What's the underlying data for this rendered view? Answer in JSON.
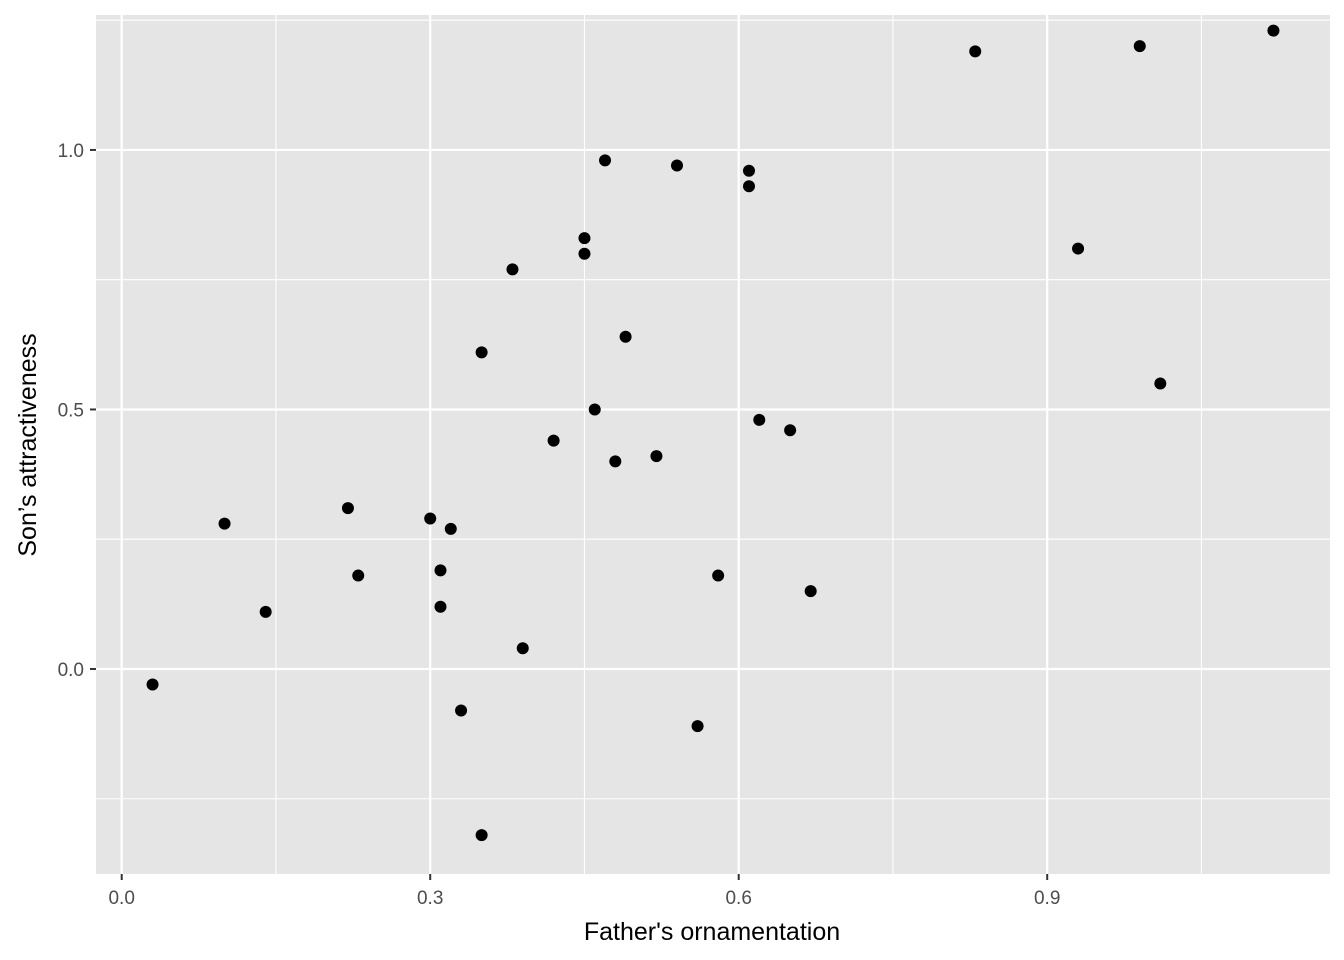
{
  "chart_data": {
    "type": "scatter",
    "title": "",
    "xlabel": "Father's ornamentation",
    "ylabel": "Son’s attractiveness",
    "xlim": [
      -0.025,
      1.175
    ],
    "ylim": [
      -0.395,
      1.26
    ],
    "x_ticks": [
      0.0,
      0.3,
      0.6,
      0.9
    ],
    "x_tick_labels": [
      "0.0",
      "0.3",
      "0.6",
      "0.9"
    ],
    "x_minor_ticks": [
      0.15,
      0.45,
      0.75,
      1.05
    ],
    "y_ticks": [
      0.0,
      0.5,
      1.0
    ],
    "y_tick_labels": [
      "0.0",
      "0.5",
      "1.0"
    ],
    "y_minor_ticks": [
      -0.25,
      0.25,
      0.75,
      1.25
    ],
    "grid": true,
    "legend": "none",
    "colors": {
      "panel": "#e5e5e5",
      "grid": "#ffffff",
      "point": "#000000"
    },
    "points": [
      {
        "x": 0.03,
        "y": -0.03
      },
      {
        "x": 0.1,
        "y": 0.28
      },
      {
        "x": 0.14,
        "y": 0.11
      },
      {
        "x": 0.22,
        "y": 0.31
      },
      {
        "x": 0.23,
        "y": 0.18
      },
      {
        "x": 0.3,
        "y": 0.29
      },
      {
        "x": 0.31,
        "y": 0.19
      },
      {
        "x": 0.31,
        "y": 0.12
      },
      {
        "x": 0.32,
        "y": 0.27
      },
      {
        "x": 0.33,
        "y": -0.08
      },
      {
        "x": 0.35,
        "y": 0.61
      },
      {
        "x": 0.35,
        "y": -0.32
      },
      {
        "x": 0.38,
        "y": 0.77
      },
      {
        "x": 0.39,
        "y": 0.04
      },
      {
        "x": 0.42,
        "y": 0.44
      },
      {
        "x": 0.45,
        "y": 0.83
      },
      {
        "x": 0.45,
        "y": 0.8
      },
      {
        "x": 0.46,
        "y": 0.5
      },
      {
        "x": 0.47,
        "y": 0.98
      },
      {
        "x": 0.48,
        "y": 0.4
      },
      {
        "x": 0.49,
        "y": 0.64
      },
      {
        "x": 0.52,
        "y": 0.41
      },
      {
        "x": 0.54,
        "y": 0.97
      },
      {
        "x": 0.56,
        "y": -0.11
      },
      {
        "x": 0.58,
        "y": 0.18
      },
      {
        "x": 0.61,
        "y": 0.96
      },
      {
        "x": 0.61,
        "y": 0.93
      },
      {
        "x": 0.62,
        "y": 0.48
      },
      {
        "x": 0.65,
        "y": 0.46
      },
      {
        "x": 0.67,
        "y": 0.15
      },
      {
        "x": 0.83,
        "y": 1.19
      },
      {
        "x": 0.93,
        "y": 0.81
      },
      {
        "x": 0.99,
        "y": 1.2
      },
      {
        "x": 1.01,
        "y": 0.55
      },
      {
        "x": 1.12,
        "y": 1.23
      }
    ]
  }
}
